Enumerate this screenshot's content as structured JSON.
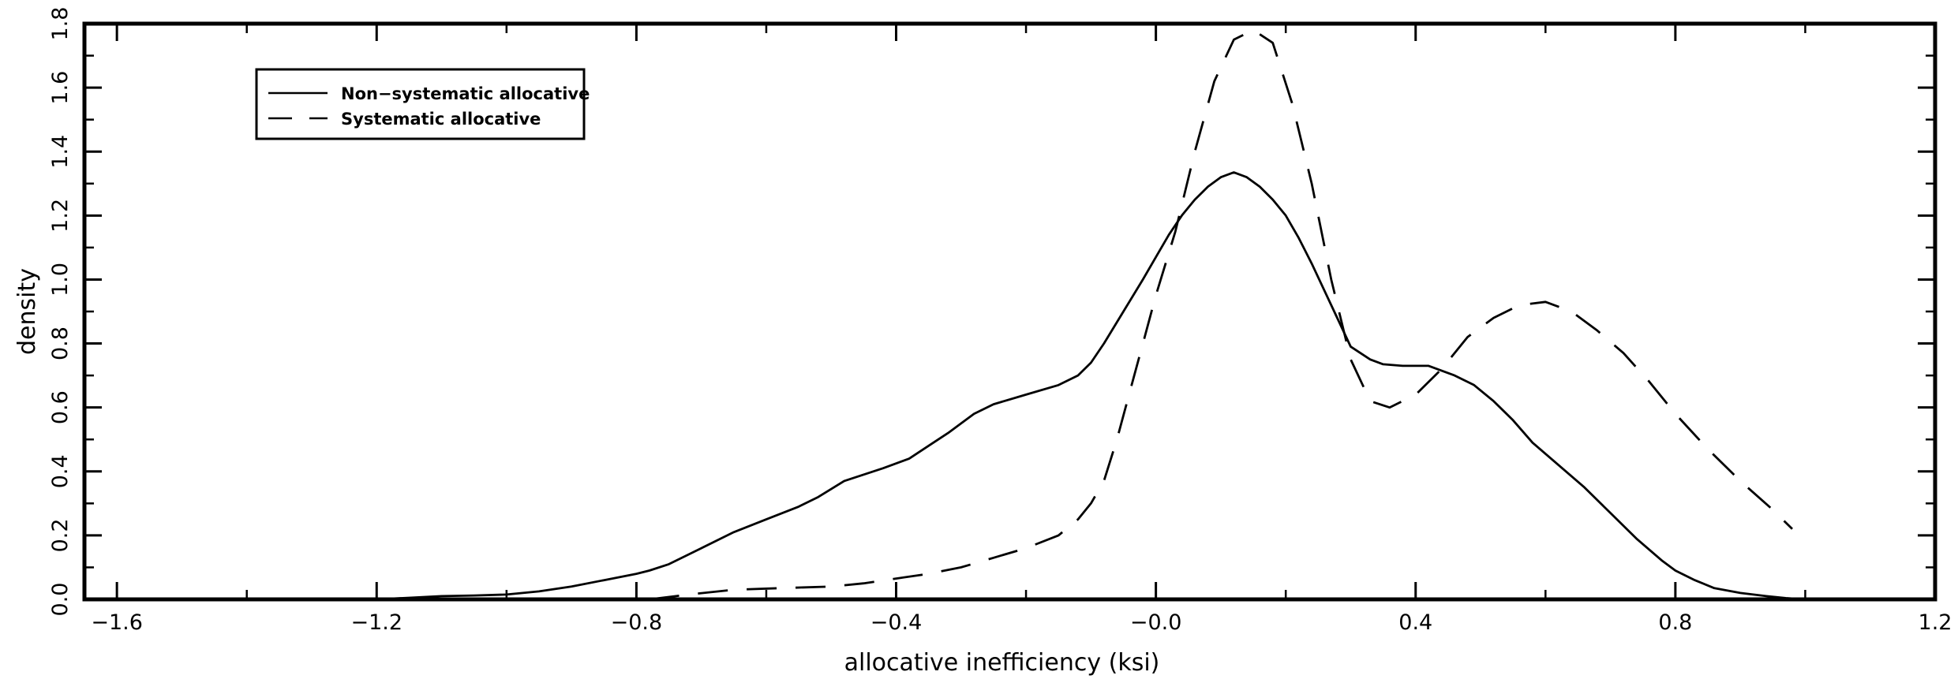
{
  "chart_data": {
    "type": "line",
    "title": "",
    "xlabel": "allocative inefficiency (ksi)",
    "ylabel": "density",
    "xlim": [
      -1.65,
      1.2
    ],
    "ylim": [
      0,
      1.8
    ],
    "x_ticks": [
      -1.6,
      -1.2,
      -0.8,
      -0.4,
      0.0,
      0.4,
      0.8,
      1.2
    ],
    "x_tick_labels": [
      "−1.6",
      "−1.2",
      "−0.8",
      "−0.4",
      "−0.0",
      "0.4",
      "0.8",
      "1.2"
    ],
    "y_ticks": [
      0,
      0.2,
      0.4,
      0.6,
      0.8,
      1.0,
      1.2,
      1.4,
      1.6,
      1.8
    ],
    "y_tick_labels": [
      "0.0",
      "0.2",
      "0.4",
      "0.6",
      "0.8",
      "1.0",
      "1.2",
      "1.4",
      "1.6",
      "1.8"
    ],
    "grid": false,
    "legend_position": "top-left",
    "series": [
      {
        "name": "Non−systematic allocative",
        "style": "solid",
        "color": "#000000",
        "x": [
          -1.2,
          -1.15,
          -1.1,
          -1.05,
          -1.0,
          -0.95,
          -0.9,
          -0.85,
          -0.8,
          -0.78,
          -0.75,
          -0.72,
          -0.7,
          -0.65,
          -0.6,
          -0.55,
          -0.52,
          -0.48,
          -0.45,
          -0.42,
          -0.38,
          -0.35,
          -0.32,
          -0.3,
          -0.28,
          -0.25,
          -0.2,
          -0.15,
          -0.12,
          -0.1,
          -0.08,
          -0.05,
          -0.02,
          0.0,
          0.02,
          0.04,
          0.06,
          0.08,
          0.1,
          0.12,
          0.14,
          0.16,
          0.18,
          0.2,
          0.22,
          0.24,
          0.27,
          0.3,
          0.33,
          0.35,
          0.38,
          0.42,
          0.46,
          0.49,
          0.52,
          0.55,
          0.58,
          0.62,
          0.66,
          0.7,
          0.74,
          0.78,
          0.8,
          0.83,
          0.86,
          0.9,
          0.94,
          0.97,
          1.0
        ],
        "y": [
          0.0,
          0.005,
          0.01,
          0.012,
          0.015,
          0.025,
          0.04,
          0.06,
          0.08,
          0.09,
          0.11,
          0.14,
          0.16,
          0.21,
          0.25,
          0.29,
          0.32,
          0.37,
          0.39,
          0.41,
          0.44,
          0.48,
          0.52,
          0.55,
          0.58,
          0.61,
          0.64,
          0.67,
          0.7,
          0.74,
          0.8,
          0.9,
          1.0,
          1.07,
          1.14,
          1.2,
          1.25,
          1.29,
          1.32,
          1.335,
          1.32,
          1.29,
          1.25,
          1.2,
          1.13,
          1.05,
          0.92,
          0.79,
          0.75,
          0.735,
          0.73,
          0.73,
          0.7,
          0.67,
          0.62,
          0.56,
          0.49,
          0.42,
          0.35,
          0.27,
          0.19,
          0.12,
          0.09,
          0.06,
          0.035,
          0.02,
          0.01,
          0.004,
          0.0
        ]
      },
      {
        "name": "Systematic allocative",
        "style": "dashed",
        "color": "#000000",
        "x": [
          -0.78,
          -0.72,
          -0.65,
          -0.58,
          -0.5,
          -0.45,
          -0.4,
          -0.35,
          -0.3,
          -0.25,
          -0.2,
          -0.15,
          -0.12,
          -0.1,
          -0.08,
          -0.06,
          -0.04,
          -0.02,
          0.0,
          0.03,
          0.06,
          0.09,
          0.12,
          0.15,
          0.18,
          0.21,
          0.24,
          0.27,
          0.3,
          0.33,
          0.36,
          0.4,
          0.44,
          0.48,
          0.52,
          0.56,
          0.6,
          0.64,
          0.68,
          0.72,
          0.76,
          0.8,
          0.85,
          0.9,
          0.95,
          0.98
        ],
        "y": [
          0.0,
          0.015,
          0.03,
          0.035,
          0.04,
          0.05,
          0.065,
          0.08,
          0.1,
          0.13,
          0.16,
          0.2,
          0.25,
          0.3,
          0.37,
          0.5,
          0.65,
          0.8,
          0.95,
          1.15,
          1.4,
          1.62,
          1.75,
          1.78,
          1.74,
          1.55,
          1.3,
          1.0,
          0.75,
          0.62,
          0.6,
          0.64,
          0.72,
          0.82,
          0.88,
          0.92,
          0.93,
          0.9,
          0.84,
          0.77,
          0.68,
          0.58,
          0.47,
          0.37,
          0.28,
          0.22
        ]
      }
    ]
  }
}
